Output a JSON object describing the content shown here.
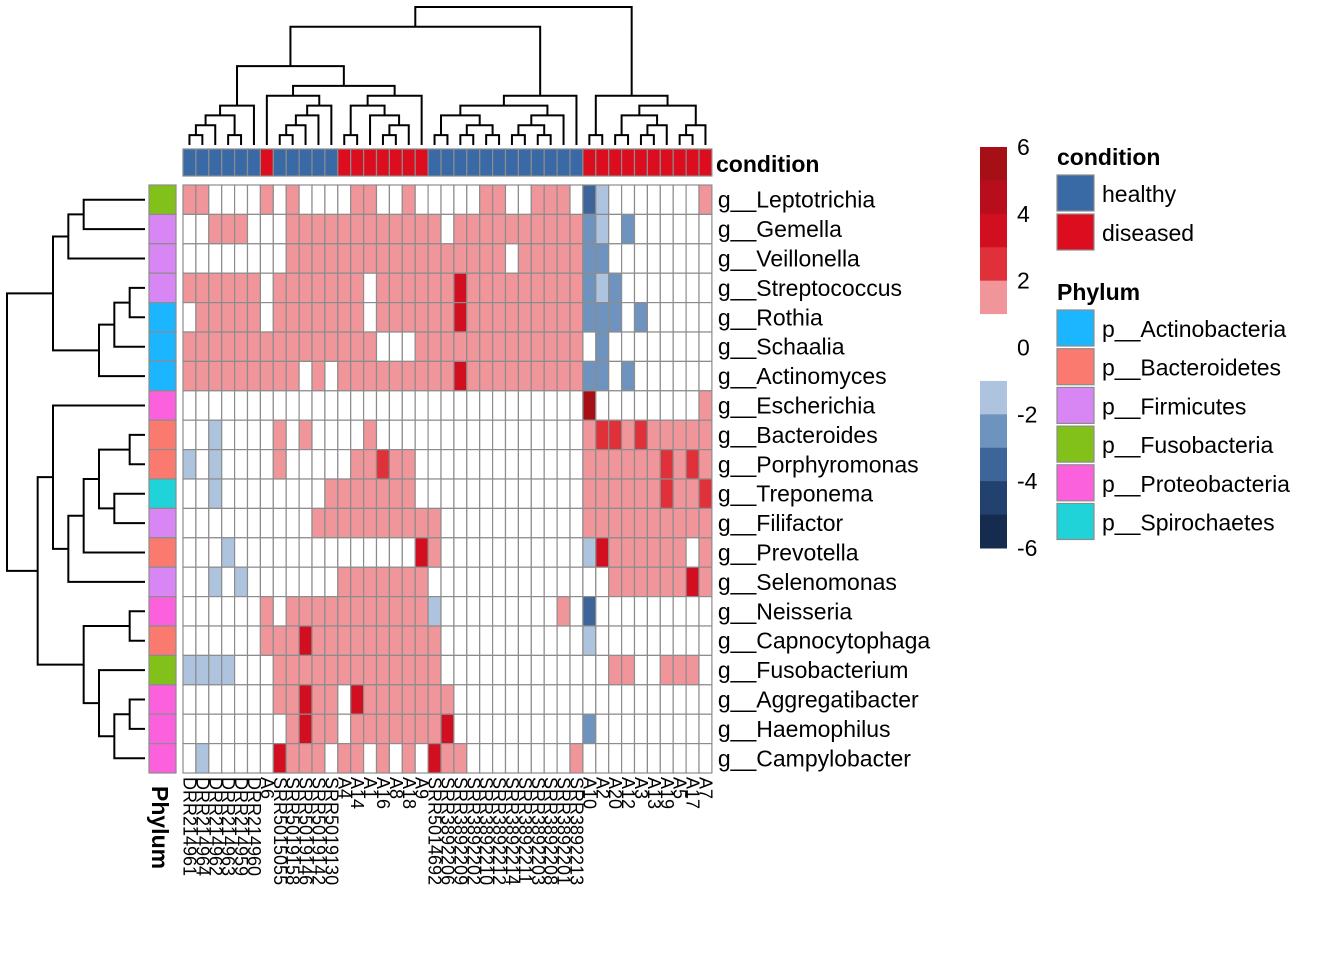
{
  "chart_data": {
    "type": "heatmap",
    "title": "",
    "color_scale": {
      "min": -6,
      "max": 6,
      "ticks": [
        6,
        4,
        2,
        0,
        -2,
        -4,
        -6
      ],
      "bins": [
        {
          "range": [
            5,
            6
          ],
          "color": "#a50f15"
        },
        {
          "range": [
            4,
            5
          ],
          "color": "#b80d1c"
        },
        {
          "range": [
            3,
            4
          ],
          "color": "#d20f20"
        },
        {
          "range": [
            2,
            3
          ],
          "color": "#e0303a"
        },
        {
          "range": [
            1,
            2
          ],
          "color": "#f0959a"
        },
        {
          "range": [
            -1,
            1
          ],
          "color": "#ffffff"
        },
        {
          "range": [
            -2,
            -1
          ],
          "color": "#aec4de"
        },
        {
          "range": [
            -3,
            -2
          ],
          "color": "#6f93bf"
        },
        {
          "range": [
            -4,
            -3
          ],
          "color": "#3d6599"
        },
        {
          "range": [
            -5,
            -4
          ],
          "color": "#22416e"
        },
        {
          "range": [
            -6,
            -5
          ],
          "color": "#162c4f"
        }
      ]
    },
    "condition_legend": {
      "title": "condition",
      "items": [
        {
          "label": "healthy",
          "color": "#3a6aa6"
        },
        {
          "label": "diseased",
          "color": "#dc0d1f"
        }
      ]
    },
    "phylum_legend": {
      "title": "Phylum",
      "items": [
        {
          "label": "p__Actinobacteria",
          "color": "#1bb6ff"
        },
        {
          "label": "p__Bacteroidetes",
          "color": "#fa7a70"
        },
        {
          "label": "p__Firmicutes",
          "color": "#d986f5"
        },
        {
          "label": "p__Fusobacteria",
          "color": "#82c11a"
        },
        {
          "label": "p__Proteobacteria",
          "color": "#fb61dd"
        },
        {
          "label": "p__Spirochaetes",
          "color": "#1fd3d8"
        }
      ]
    },
    "row_annotation_title": "Phylum",
    "col_annotation_title": "condition",
    "rows": [
      {
        "label": "g__Leptotrichia",
        "phylum": "p__Fusobacteria"
      },
      {
        "label": "g__Gemella",
        "phylum": "p__Firmicutes"
      },
      {
        "label": "g__Veillonella",
        "phylum": "p__Firmicutes"
      },
      {
        "label": "g__Streptococcus",
        "phylum": "p__Firmicutes"
      },
      {
        "label": "g__Rothia",
        "phylum": "p__Actinobacteria"
      },
      {
        "label": "g__Schaalia",
        "phylum": "p__Actinobacteria"
      },
      {
        "label": "g__Actinomyces",
        "phylum": "p__Actinobacteria"
      },
      {
        "label": "g__Escherichia",
        "phylum": "p__Proteobacteria"
      },
      {
        "label": "g__Bacteroides",
        "phylum": "p__Bacteroidetes"
      },
      {
        "label": "g__Porphyromonas",
        "phylum": "p__Bacteroidetes"
      },
      {
        "label": "g__Treponema",
        "phylum": "p__Spirochaetes"
      },
      {
        "label": "g__Filifactor",
        "phylum": "p__Firmicutes"
      },
      {
        "label": "g__Prevotella",
        "phylum": "p__Bacteroidetes"
      },
      {
        "label": "g__Selenomonas",
        "phylum": "p__Firmicutes"
      },
      {
        "label": "g__Neisseria",
        "phylum": "p__Proteobacteria"
      },
      {
        "label": "g__Capnocytophaga",
        "phylum": "p__Bacteroidetes"
      },
      {
        "label": "g__Fusobacterium",
        "phylum": "p__Fusobacteria"
      },
      {
        "label": "g__Aggregatibacter",
        "phylum": "p__Proteobacteria"
      },
      {
        "label": "g__Haemophilus",
        "phylum": "p__Proteobacteria"
      },
      {
        "label": "g__Campylobacter",
        "phylum": "p__Proteobacteria"
      }
    ],
    "columns": [
      {
        "label": "DRR214961",
        "condition": "healthy"
      },
      {
        "label": "DRR214964",
        "condition": "healthy"
      },
      {
        "label": "DRR214962",
        "condition": "healthy"
      },
      {
        "label": "DRR214963",
        "condition": "healthy"
      },
      {
        "label": "DRR214959",
        "condition": "healthy"
      },
      {
        "label": "DRR214960",
        "condition": "healthy"
      },
      {
        "label": "A6",
        "condition": "diseased"
      },
      {
        "label": "SRR5015055",
        "condition": "healthy"
      },
      {
        "label": "SRR5019158",
        "condition": "healthy"
      },
      {
        "label": "SRR5019146",
        "condition": "healthy"
      },
      {
        "label": "SRR5019142",
        "condition": "healthy"
      },
      {
        "label": "SRR5019130",
        "condition": "healthy"
      },
      {
        "label": "A4",
        "condition": "diseased"
      },
      {
        "label": "A14",
        "condition": "diseased"
      },
      {
        "label": "A1",
        "condition": "diseased"
      },
      {
        "label": "A16",
        "condition": "diseased"
      },
      {
        "label": "A8",
        "condition": "diseased"
      },
      {
        "label": "A18",
        "condition": "diseased"
      },
      {
        "label": "A9",
        "condition": "diseased"
      },
      {
        "label": "SRR5014692",
        "condition": "healthy"
      },
      {
        "label": "SRR3892206",
        "condition": "healthy"
      },
      {
        "label": "SRR3892209",
        "condition": "healthy"
      },
      {
        "label": "SRR3892202",
        "condition": "healthy"
      },
      {
        "label": "SRR3892210",
        "condition": "healthy"
      },
      {
        "label": "SRR3892212",
        "condition": "healthy"
      },
      {
        "label": "SRR3892214",
        "condition": "healthy"
      },
      {
        "label": "SRR3892211",
        "condition": "healthy"
      },
      {
        "label": "SRR3892203",
        "condition": "healthy"
      },
      {
        "label": "SRR3892208",
        "condition": "healthy"
      },
      {
        "label": "SRR3892201",
        "condition": "healthy"
      },
      {
        "label": "SRR3892213",
        "condition": "healthy"
      },
      {
        "label": "A10",
        "condition": "diseased"
      },
      {
        "label": "A2",
        "condition": "diseased"
      },
      {
        "label": "A20",
        "condition": "diseased"
      },
      {
        "label": "A12",
        "condition": "diseased"
      },
      {
        "label": "A3",
        "condition": "diseased"
      },
      {
        "label": "A13",
        "condition": "diseased"
      },
      {
        "label": "A19",
        "condition": "diseased"
      },
      {
        "label": "A5",
        "condition": "diseased"
      },
      {
        "label": "A17",
        "condition": "diseased"
      },
      {
        "label": "A7",
        "condition": "diseased"
      }
    ],
    "values": [
      [
        1,
        1,
        0,
        0,
        0,
        0,
        1,
        0,
        1,
        0,
        0,
        0,
        0,
        1,
        1,
        0,
        0,
        1,
        0,
        0,
        0,
        0,
        0,
        1,
        1,
        0,
        0,
        1,
        1,
        1,
        0,
        -4,
        -2,
        -1,
        0,
        -1,
        0,
        -1,
        0,
        0,
        1
      ],
      [
        -1,
        0,
        1,
        1,
        1,
        0,
        0,
        -1,
        1,
        1,
        1,
        1,
        1,
        1,
        1,
        1,
        1,
        1,
        1,
        1,
        0,
        1,
        1,
        1,
        1,
        1,
        1,
        1,
        1,
        1,
        1,
        -3,
        -2,
        -1,
        -3,
        -1,
        -1,
        -1,
        0,
        -1,
        -1
      ],
      [
        0,
        0,
        0,
        0,
        0,
        0,
        0,
        0,
        1,
        1,
        1,
        1,
        1,
        1,
        1,
        1,
        1,
        1,
        1,
        1,
        1,
        1,
        1,
        1,
        1,
        0,
        1,
        1,
        1,
        1,
        1,
        -3,
        -3,
        -1,
        -1,
        -1,
        -1,
        -1,
        -1,
        -1,
        -1
      ],
      [
        1,
        1,
        1,
        1,
        1,
        1,
        0,
        1,
        1,
        1,
        1,
        1,
        1,
        1,
        -1,
        1,
        1,
        1,
        1,
        1,
        1,
        3,
        1,
        1,
        1,
        1,
        1,
        1,
        1,
        1,
        1,
        -3,
        -2,
        -3,
        -1,
        -1,
        -1,
        -1,
        -1,
        -1,
        -1
      ],
      [
        0,
        1,
        1,
        1,
        1,
        1,
        0,
        1,
        1,
        1,
        1,
        1,
        1,
        1,
        -1,
        1,
        1,
        1,
        1,
        1,
        1,
        3,
        1,
        1,
        1,
        1,
        1,
        1,
        1,
        1,
        1,
        -3,
        -3,
        -3,
        -1,
        -3,
        -1,
        -1,
        -1,
        -1,
        -1
      ],
      [
        1,
        1,
        1,
        1,
        1,
        1,
        1,
        1,
        1,
        1,
        1,
        1,
        1,
        1,
        1,
        -1,
        -1,
        -1,
        1,
        1,
        1,
        1,
        1,
        1,
        1,
        1,
        1,
        1,
        1,
        1,
        1,
        -1,
        -3,
        -1,
        -1,
        -1,
        -1,
        -1,
        -1,
        -1,
        -1
      ],
      [
        1,
        1,
        1,
        1,
        1,
        1,
        1,
        1,
        1,
        0,
        1,
        0,
        1,
        1,
        1,
        1,
        1,
        1,
        1,
        1,
        1,
        3,
        1,
        1,
        1,
        1,
        1,
        1,
        1,
        1,
        1,
        -3,
        -3,
        -1,
        -3,
        -1,
        -1,
        -1,
        -1,
        -1,
        0
      ],
      [
        0,
        -1,
        0,
        -1,
        -1,
        0,
        0,
        0,
        0,
        0,
        0,
        0,
        0,
        0,
        0,
        0,
        0,
        0,
        0,
        0,
        0,
        0,
        0,
        0,
        0,
        -1,
        -1,
        0,
        0,
        0,
        -1,
        5,
        0,
        0,
        0,
        0,
        0,
        0,
        0,
        0,
        1
      ],
      [
        0,
        -1,
        -2,
        -1,
        -1,
        0,
        0,
        1,
        0,
        1,
        0,
        0,
        0,
        0,
        1,
        0,
        0,
        0,
        0,
        0,
        -1,
        -1,
        -1,
        -1,
        -1,
        -1,
        -1,
        -1,
        -1,
        -1,
        -1,
        1,
        2,
        2,
        1,
        2,
        1,
        1,
        1,
        1,
        1
      ],
      [
        -2,
        -1,
        -2,
        -1,
        -1,
        0,
        0,
        1,
        0,
        0,
        0,
        0,
        0,
        1,
        1,
        2,
        1,
        1,
        0,
        0,
        -1,
        -1,
        -1,
        -1,
        -1,
        -1,
        -1,
        -1,
        -1,
        -1,
        -1,
        1,
        1,
        1,
        1,
        1,
        1,
        2,
        1,
        2,
        1
      ],
      [
        -1,
        -1,
        -2,
        -1,
        -1,
        0,
        0,
        0,
        0,
        0,
        0,
        1,
        1,
        1,
        1,
        1,
        1,
        1,
        0,
        0,
        -1,
        -1,
        -1,
        -1,
        -1,
        -1,
        -1,
        -1,
        -1,
        -1,
        -1,
        1,
        1,
        1,
        1,
        1,
        1,
        2,
        1,
        1,
        2
      ],
      [
        0,
        -1,
        -1,
        -1,
        -1,
        -1,
        0,
        0,
        0,
        0,
        1,
        1,
        1,
        1,
        1,
        1,
        1,
        1,
        1,
        1,
        -1,
        -1,
        -1,
        -1,
        -1,
        -1,
        -1,
        -1,
        -1,
        -1,
        -1,
        1,
        1,
        1,
        1,
        1,
        1,
        1,
        1,
        1,
        1
      ],
      [
        0,
        0,
        -1,
        -2,
        -1,
        -1,
        -1,
        -1,
        0,
        0,
        0,
        0,
        0,
        0,
        -1,
        -1,
        -1,
        0,
        3,
        1,
        0,
        0,
        0,
        0,
        0,
        0,
        0,
        0,
        0,
        0,
        0,
        -2,
        3,
        1,
        1,
        1,
        1,
        1,
        1,
        -1,
        1
      ],
      [
        0,
        -1,
        -2,
        0,
        -2,
        0,
        0,
        0,
        -1,
        -1,
        0,
        0,
        1,
        1,
        1,
        1,
        1,
        1,
        1,
        0,
        -1,
        -1,
        0,
        -1,
        0,
        -1,
        0,
        0,
        0,
        0,
        0,
        -1,
        0,
        1,
        1,
        1,
        1,
        1,
        1,
        3,
        1
      ],
      [
        0,
        0,
        0,
        0,
        0,
        0,
        1,
        0,
        1,
        1,
        1,
        1,
        1,
        1,
        1,
        1,
        1,
        1,
        1,
        -2,
        -1,
        -1,
        -1,
        -1,
        0,
        0,
        0,
        0,
        0,
        1,
        0,
        -4,
        0,
        -1,
        0,
        0,
        0,
        0,
        0,
        0,
        0
      ],
      [
        -1,
        -1,
        -1,
        0,
        0,
        0,
        1,
        1,
        1,
        3,
        1,
        1,
        1,
        1,
        1,
        1,
        1,
        1,
        1,
        1,
        0,
        0,
        0,
        0,
        0,
        0,
        -1,
        -1,
        -1,
        -1,
        -1,
        -2,
        0,
        -1,
        -1,
        0,
        0,
        0,
        0,
        0,
        0
      ],
      [
        -2,
        -2,
        -2,
        -2,
        -1,
        0,
        -1,
        1,
        1,
        1,
        1,
        1,
        1,
        1,
        1,
        1,
        1,
        1,
        1,
        1,
        0,
        0,
        0,
        0,
        0,
        0,
        0,
        0,
        0,
        0,
        0,
        -1,
        0,
        1,
        1,
        0,
        0,
        1,
        1,
        1,
        0
      ],
      [
        -1,
        -1,
        -1,
        -1,
        -1,
        -1,
        0,
        1,
        1,
        3,
        1,
        1,
        0,
        3,
        1,
        1,
        1,
        1,
        1,
        1,
        1,
        0,
        0,
        0,
        0,
        0,
        0,
        0,
        0,
        0,
        0,
        -1,
        0,
        0,
        0,
        0,
        0,
        0,
        0,
        0,
        0
      ],
      [
        -1,
        -1,
        -1,
        -1,
        -1,
        -1,
        0,
        0,
        1,
        3,
        1,
        1,
        0,
        1,
        1,
        1,
        1,
        1,
        1,
        1,
        3,
        0,
        0,
        -1,
        0,
        0,
        0,
        0,
        0,
        0,
        0,
        -3,
        -1,
        -1,
        0,
        0,
        0,
        0,
        0,
        0,
        -1
      ],
      [
        -1,
        -2,
        -1,
        -1,
        -1,
        0,
        0,
        3,
        1,
        1,
        1,
        0,
        1,
        1,
        0,
        1,
        0,
        1,
        0,
        3,
        1,
        1,
        0,
        -1,
        0,
        -1,
        0,
        0,
        0,
        0,
        1,
        -1,
        0,
        0,
        0,
        0,
        0,
        0,
        0,
        0,
        0
      ]
    ]
  }
}
